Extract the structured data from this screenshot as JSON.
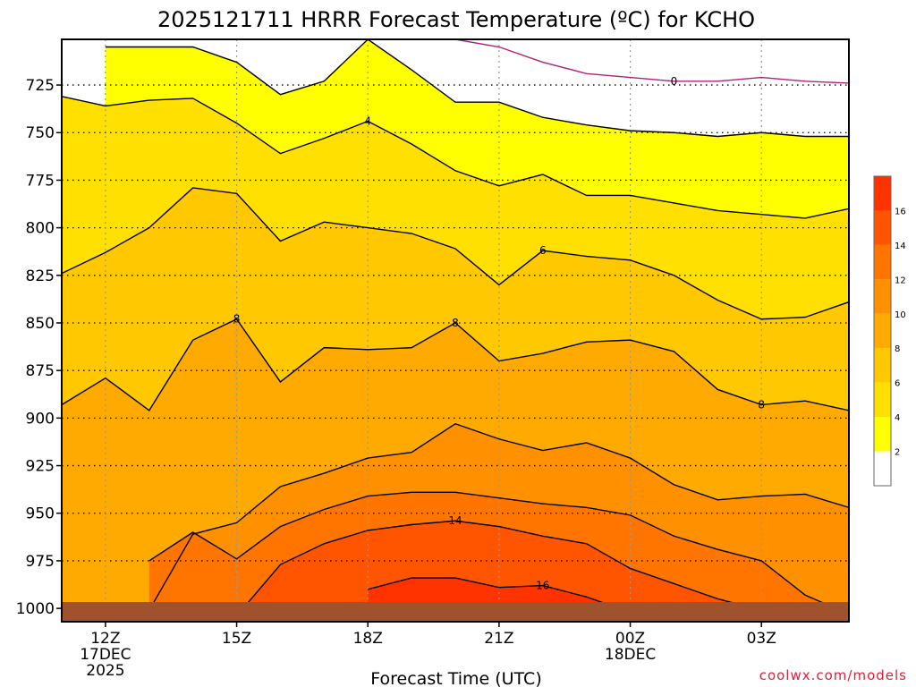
{
  "chart_data": {
    "type": "heatmap",
    "title": "2025121711 HRRR Forecast Temperature (ºC) for KCHO",
    "xlabel": "Forecast Time (UTC)",
    "ylabel": "",
    "credit": "coolwx.com/models",
    "y_ticks": [
      "725",
      "750",
      "775",
      "800",
      "825",
      "850",
      "875",
      "900",
      "925",
      "950",
      "975",
      "1000"
    ],
    "y_range": [
      701,
      1007
    ],
    "x_ticks": [
      {
        "hour": 0,
        "label": "12Z",
        "line2": "17DEC",
        "line3": "2025"
      },
      {
        "hour": 3,
        "label": "15Z",
        "line2": "",
        "line3": ""
      },
      {
        "hour": 6,
        "label": "18Z",
        "line2": "",
        "line3": ""
      },
      {
        "hour": 9,
        "label": "21Z",
        "line2": "",
        "line3": ""
      },
      {
        "hour": 12,
        "label": "00Z",
        "line2": "18DEC",
        "line3": ""
      },
      {
        "hour": 15,
        "label": "03Z",
        "line2": "",
        "line3": ""
      }
    ],
    "x_range": [
      -1,
      17
    ],
    "colorbar": {
      "levels": [
        2,
        4,
        6,
        8,
        10,
        12,
        14,
        16
      ],
      "colors": [
        "#ffffff",
        "#ffff00",
        "#ffe000",
        "#ffc800",
        "#ffaa00",
        "#ff9000",
        "#ff7500",
        "#ff5500",
        "#ff3300"
      ]
    },
    "hours": [
      -1,
      0,
      1,
      2,
      3,
      4,
      5,
      6,
      7,
      8,
      9,
      10,
      11,
      12,
      13,
      14,
      15,
      16,
      17
    ],
    "isotherms": [
      {
        "level": 0,
        "line": "#b0207a",
        "p": [
          null,
          null,
          null,
          null,
          null,
          null,
          null,
          null,
          null,
          701,
          705,
          713,
          719,
          721,
          723,
          723,
          721,
          723,
          724
        ]
      },
      {
        "level": 2,
        "line": "#000",
        "p": [
          null,
          705,
          705,
          705,
          713,
          730,
          723,
          701,
          717,
          734,
          734,
          742,
          746,
          749,
          750,
          752,
          750,
          752,
          752
        ]
      },
      {
        "level": 4,
        "line": "#000",
        "p": [
          731,
          736,
          733,
          732,
          745,
          761,
          753,
          744,
          756,
          770,
          778,
          772,
          783,
          783,
          787,
          791,
          793,
          795,
          790
        ]
      },
      {
        "level": 6,
        "line": "#000",
        "p": [
          824,
          813,
          800,
          779,
          782,
          807,
          797,
          800,
          803,
          811,
          830,
          812,
          815,
          817,
          825,
          838,
          848,
          847,
          839
        ]
      },
      {
        "level": 8,
        "line": "#000",
        "p": [
          893,
          879,
          896,
          859,
          848,
          881,
          863,
          864,
          863,
          850,
          870,
          866,
          860,
          859,
          865,
          885,
          893,
          891,
          896
        ]
      },
      {
        "level": 10,
        "line": "#000",
        "p": [
          1002,
          1001,
          1001,
          961,
          955,
          936,
          929,
          921,
          918,
          903,
          911,
          917,
          913,
          921,
          935,
          943,
          941,
          940,
          947
        ]
      },
      {
        "level": 12,
        "line": "#000",
        "p": [
          null,
          null,
          975,
          960,
          974,
          957,
          948,
          941,
          939,
          939,
          942,
          945,
          947,
          951,
          962,
          969,
          975,
          993,
          1003
        ]
      },
      {
        "level": 14,
        "line": "#000",
        "p": [
          null,
          null,
          null,
          null,
          1004,
          977,
          966,
          959,
          956,
          954,
          957,
          962,
          966,
          979,
          987,
          995,
          1001,
          1002,
          1003
        ]
      },
      {
        "level": 16,
        "line": "#000",
        "p": [
          null,
          null,
          null,
          null,
          null,
          null,
          null,
          990,
          984,
          984,
          989,
          988,
          994,
          1002,
          1004,
          null,
          null,
          null,
          null
        ]
      }
    ],
    "contour_labels": [
      {
        "text": "0",
        "hour": 13,
        "p": 723
      },
      {
        "text": "4",
        "hour": 6,
        "p": 744
      },
      {
        "text": "6",
        "hour": 10,
        "p": 812
      },
      {
        "text": "8",
        "hour": 3,
        "p": 848
      },
      {
        "text": "8",
        "hour": 8,
        "p": 850
      },
      {
        "text": "8",
        "hour": 15,
        "p": 893
      },
      {
        "text": "14",
        "hour": 8,
        "p": 954
      },
      {
        "text": "16",
        "hour": 10,
        "p": 988
      }
    ],
    "surface_color": "#a0522d"
  }
}
